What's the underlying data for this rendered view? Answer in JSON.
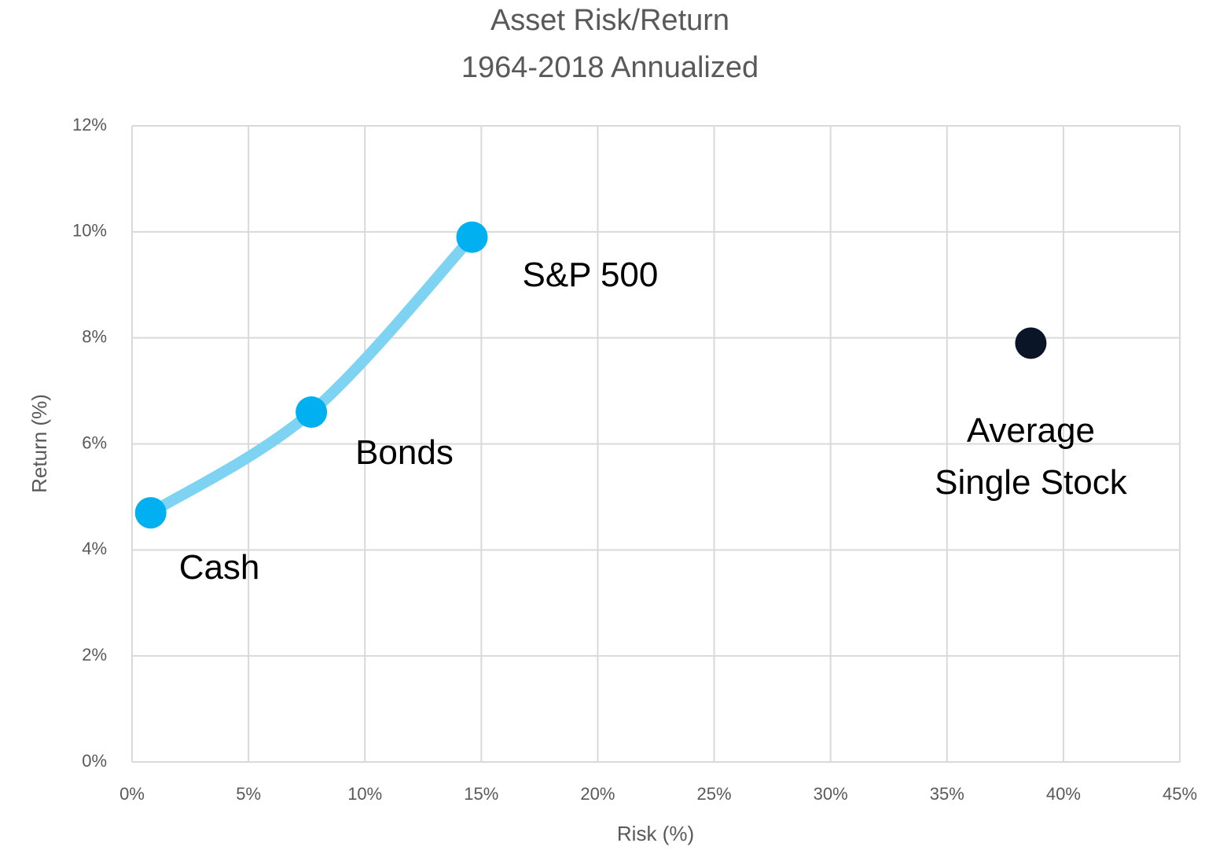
{
  "chart_data": {
    "type": "scatter",
    "title": "Asset Risk/Return",
    "subtitle": "1964-2018 Annualized",
    "x_label": "Risk (%)",
    "y_label": "Return (%)",
    "xlim": [
      0,
      45
    ],
    "ylim": [
      0,
      12
    ],
    "xticks": [
      {
        "value": 0,
        "label": "0%"
      },
      {
        "value": 5,
        "label": "5%"
      },
      {
        "value": 10,
        "label": "10%"
      },
      {
        "value": 15,
        "label": "15%"
      },
      {
        "value": 20,
        "label": "20%"
      },
      {
        "value": 25,
        "label": "25%"
      },
      {
        "value": 30,
        "label": "30%"
      },
      {
        "value": 35,
        "label": "35%"
      },
      {
        "value": 40,
        "label": "40%"
      },
      {
        "value": 45,
        "label": "45%"
      }
    ],
    "yticks": [
      {
        "value": 0,
        "label": "0%"
      },
      {
        "value": 2,
        "label": "2%"
      },
      {
        "value": 4,
        "label": "4%"
      },
      {
        "value": 6,
        "label": "6%"
      },
      {
        "value": 8,
        "label": "8%"
      },
      {
        "value": 10,
        "label": "10%"
      },
      {
        "value": 12,
        "label": "12%"
      }
    ],
    "grid": true,
    "series": [
      {
        "color": "#00b0f0",
        "line_color": "#7fd3f2",
        "smooth_line": true,
        "x": [
          0.8,
          7.7,
          14.6
        ],
        "y": [
          4.7,
          6.6,
          9.9
        ],
        "labels": [
          "Cash",
          "Bonds",
          "S&P 500"
        ]
      },
      {
        "color": "#0a1628",
        "x": [
          38.6
        ],
        "y": [
          7.9
        ],
        "labels": [
          "Average Single Stock"
        ]
      }
    ]
  }
}
